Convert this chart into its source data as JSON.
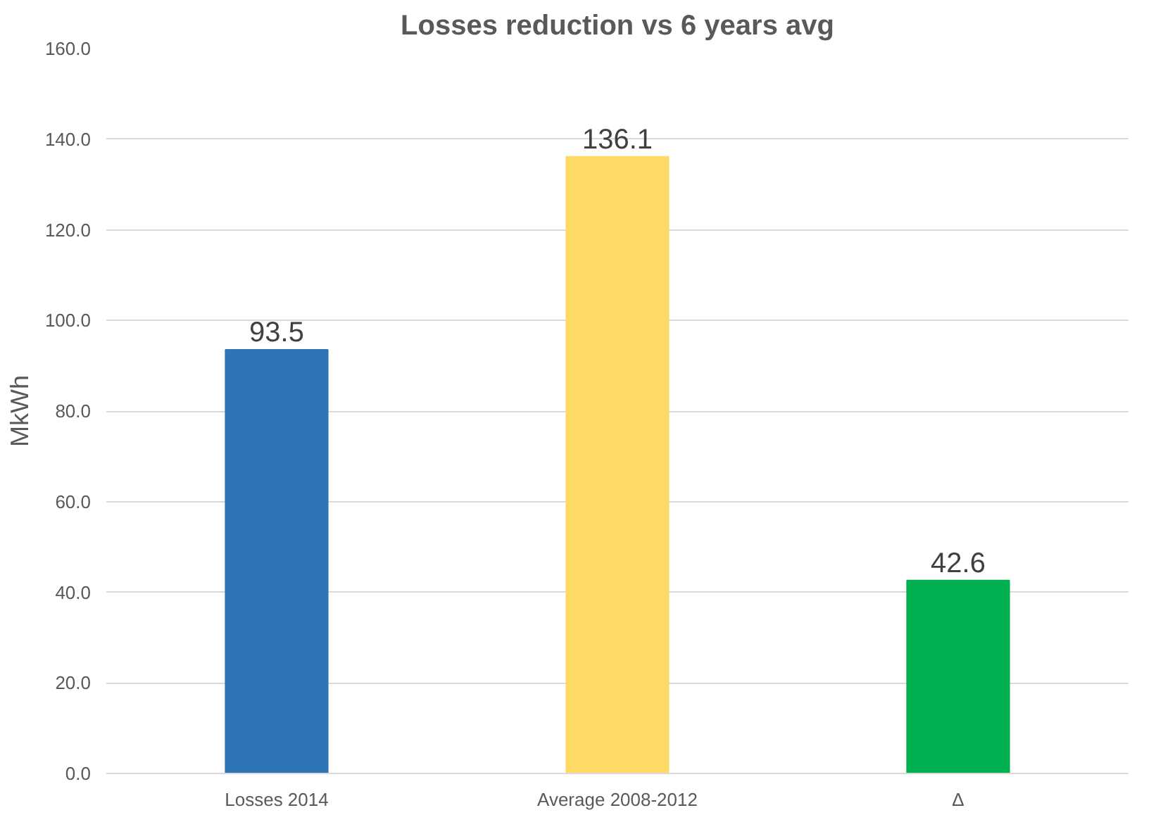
{
  "chart_data": {
    "type": "bar",
    "title": "Losses reduction vs 6 years avg",
    "ylabel": "MkWh",
    "categories": [
      "Losses 2014",
      "Average 2008-2012",
      "Δ"
    ],
    "values": [
      93.5,
      136.1,
      42.6
    ],
    "colors": [
      "#2e75b6",
      "#ffd966",
      "#00b050"
    ],
    "data_labels": true,
    "ylim": [
      0,
      160
    ],
    "yticks": [
      {
        "value": 0,
        "label": "0.0"
      },
      {
        "value": 20,
        "label": "20.0"
      },
      {
        "value": 40,
        "label": "40.0"
      },
      {
        "value": 60,
        "label": "60.0"
      },
      {
        "value": 80,
        "label": "80.0"
      },
      {
        "value": 100,
        "label": "100.0"
      },
      {
        "value": 120,
        "label": "120.0"
      },
      {
        "value": 140,
        "label": "140.0"
      },
      {
        "value": 160,
        "label": "160.0"
      }
    ],
    "grid": "y"
  }
}
